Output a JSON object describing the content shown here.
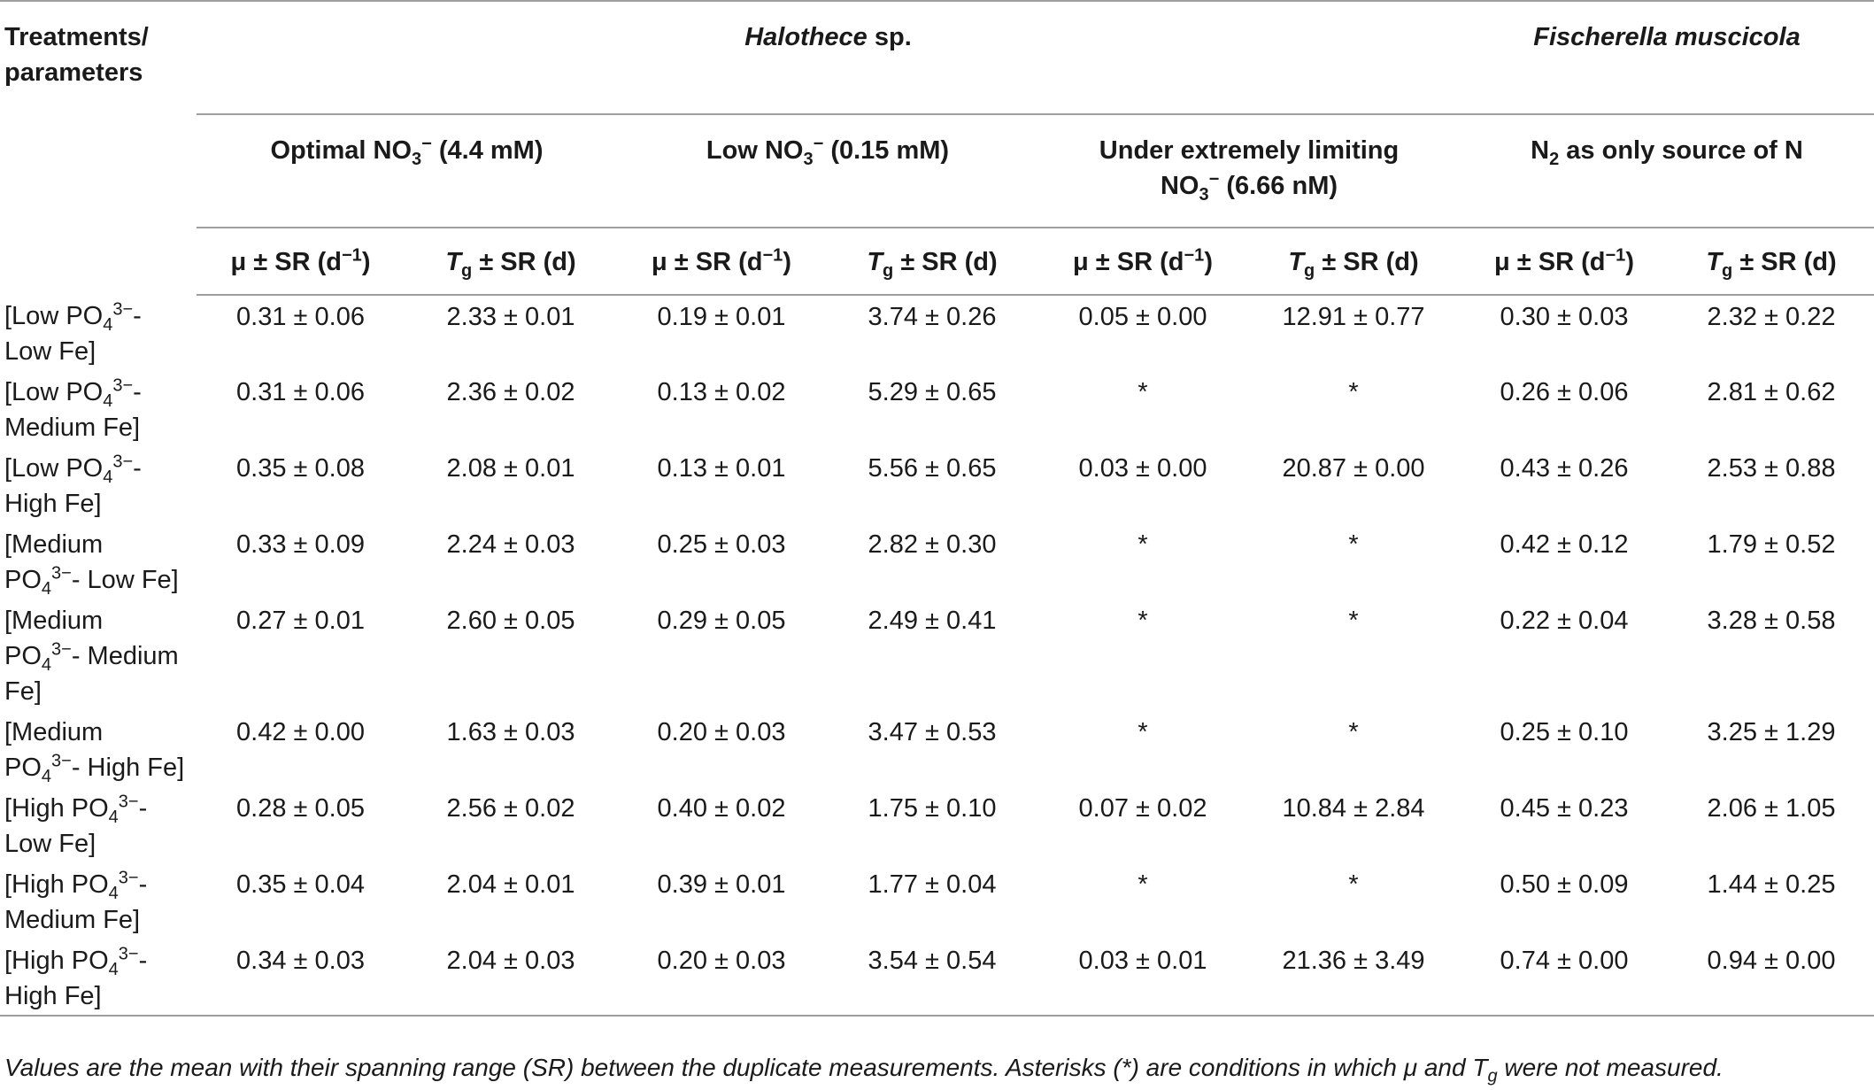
{
  "header": {
    "treatments_label_line1": "Treatments/",
    "treatments_label_line2": "parameters",
    "species1_italic": "Halothece",
    "species1_suffix": " sp.",
    "species2": "Fischerella muscicola",
    "cond1_prefix": "Optimal NO",
    "cond1_sub": "3",
    "cond1_sup": "−",
    "cond1_suffix": " (4.4 mM)",
    "cond2_prefix": "Low NO",
    "cond2_sub": "3",
    "cond2_sup": "−",
    "cond2_suffix": " (0.15 mM)",
    "cond3_line1": "Under extremely limiting",
    "cond3_prefix": "NO",
    "cond3_sub": "3",
    "cond3_sup": "−",
    "cond3_suffix": " (6.66 nM)",
    "cond4_prefix": "N",
    "cond4_sub": "2",
    "cond4_suffix": " as only source of N",
    "mu_label": "μ ± SR (d",
    "mu_sup": "−1",
    "mu_close": ")",
    "tg_T": "T",
    "tg_sub": "g",
    "tg_suffix": " ± SR (d)"
  },
  "rows": [
    {
      "t1": "[Low PO",
      "t1sub": "4",
      "t1sup": "3−",
      "t1end": "-",
      "t2": "Low Fe]",
      "t3": "",
      "v": [
        "0.31 ± 0.06",
        "2.33 ± 0.01",
        "0.19 ± 0.01",
        "3.74 ± 0.26",
        "0.05 ± 0.00",
        "12.91 ± 0.77",
        "0.30 ± 0.03",
        "2.32 ± 0.22"
      ]
    },
    {
      "t1": "[Low PO",
      "t1sub": "4",
      "t1sup": "3−",
      "t1end": "-",
      "t2": "Medium Fe]",
      "t3": "",
      "v": [
        "0.31 ± 0.06",
        "2.36 ± 0.02",
        "0.13 ± 0.02",
        "5.29 ± 0.65",
        "*",
        "*",
        "0.26 ± 0.06",
        "2.81 ± 0.62"
      ]
    },
    {
      "t1": "[Low PO",
      "t1sub": "4",
      "t1sup": "3−",
      "t1end": "-",
      "t2": "High Fe]",
      "t3": "",
      "v": [
        "0.35 ± 0.08",
        "2.08 ± 0.01",
        "0.13 ± 0.01",
        "5.56 ± 0.65",
        "0.03 ± 0.00",
        "20.87 ± 0.00",
        "0.43 ± 0.26",
        "2.53 ± 0.88"
      ]
    },
    {
      "t1": "[Medium",
      "t1sub": "",
      "t1sup": "",
      "t1end": "",
      "t2pre": "PO",
      "t2sub": "4",
      "t2sup": "3−",
      "t2": "- Low Fe]",
      "t3": "",
      "v": [
        "0.33 ± 0.09",
        "2.24 ± 0.03",
        "0.25 ± 0.03",
        "2.82 ± 0.30",
        "*",
        "*",
        "0.42 ± 0.12",
        "1.79 ± 0.52"
      ]
    },
    {
      "t1": "[Medium",
      "t1sub": "",
      "t1sup": "",
      "t1end": "",
      "t2pre": "PO",
      "t2sub": "4",
      "t2sup": "3−",
      "t2": "- Medium",
      "t3": "Fe]",
      "v": [
        "0.27 ± 0.01",
        "2.60 ± 0.05",
        "0.29 ± 0.05",
        "2.49 ± 0.41",
        "*",
        "*",
        "0.22 ± 0.04",
        "3.28 ± 0.58"
      ]
    },
    {
      "t1": "[Medium",
      "t1sub": "",
      "t1sup": "",
      "t1end": "",
      "t2pre": "PO",
      "t2sub": "4",
      "t2sup": "3−",
      "t2": "- High Fe]",
      "t3": "",
      "v": [
        "0.42 ± 0.00",
        "1.63 ± 0.03",
        "0.20 ± 0.03",
        "3.47 ± 0.53",
        "*",
        "*",
        "0.25 ± 0.10",
        "3.25 ± 1.29"
      ]
    },
    {
      "t1": "[High PO",
      "t1sub": "4",
      "t1sup": "3−",
      "t1end": "-",
      "t2": "Low Fe]",
      "t3": "",
      "v": [
        "0.28 ± 0.05",
        "2.56 ± 0.02",
        "0.40 ± 0.02",
        "1.75 ± 0.10",
        "0.07 ± 0.02",
        "10.84 ± 2.84",
        "0.45 ± 0.23",
        "2.06 ± 1.05"
      ]
    },
    {
      "t1": "[High PO",
      "t1sub": "4",
      "t1sup": "3−",
      "t1end": "-",
      "t2": "Medium Fe]",
      "t3": "",
      "v": [
        "0.35 ± 0.04",
        "2.04 ± 0.01",
        "0.39 ± 0.01",
        "1.77 ± 0.04",
        "*",
        "*",
        "0.50 ± 0.09",
        "1.44 ± 0.25"
      ]
    },
    {
      "t1": "[High PO",
      "t1sub": "4",
      "t1sup": "3−",
      "t1end": "-",
      "t2": "High Fe]",
      "t3": "",
      "v": [
        "0.34 ± 0.03",
        "2.04 ± 0.03",
        "0.20 ± 0.03",
        "3.54 ± 0.54",
        "0.03 ± 0.01",
        "21.36 ± 3.49",
        "0.74 ± 0.00",
        "0.94 ± 0.00"
      ]
    }
  ],
  "footnote": {
    "part1": "Values are the mean with their spanning range (SR) between the duplicate measurements. Asterisks (*) are conditions in which μ and T",
    "sub": "g",
    "part2": " were not measured."
  }
}
